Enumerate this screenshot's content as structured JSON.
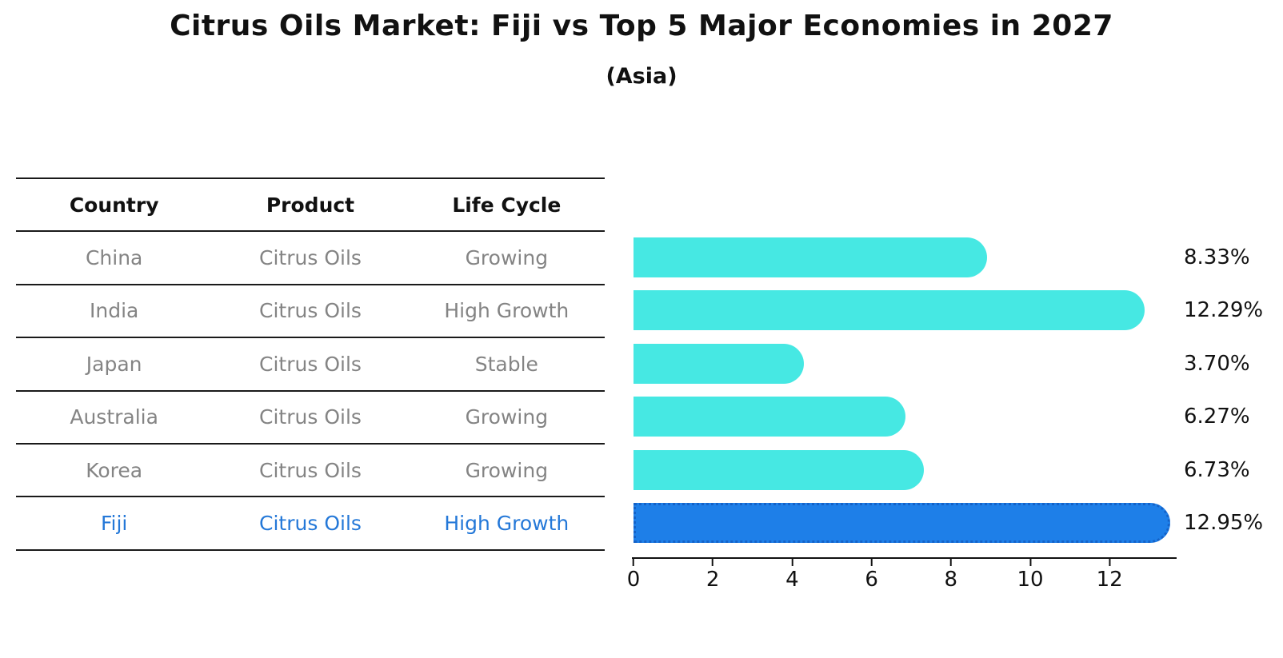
{
  "title": "Citrus Oils Market: Fiji vs Top 5 Major Economies in 2027",
  "subtitle": "(Asia)",
  "table": {
    "headers": [
      "Country",
      "Product",
      "Life Cycle"
    ],
    "rows": [
      {
        "country": "China",
        "product": "Citrus Oils",
        "life_cycle": "Growing",
        "highlight": false
      },
      {
        "country": "India",
        "product": "Citrus Oils",
        "life_cycle": "High Growth",
        "highlight": false
      },
      {
        "country": "Japan",
        "product": "Citrus Oils",
        "life_cycle": "Stable",
        "highlight": false
      },
      {
        "country": "Australia",
        "product": "Citrus Oils",
        "life_cycle": "Growing",
        "highlight": false
      },
      {
        "country": "Korea",
        "product": "Citrus Oils",
        "life_cycle": "Growing",
        "highlight": false
      },
      {
        "country": "Fiji",
        "product": "Citrus Oils",
        "life_cycle": "High Growth",
        "highlight": true
      }
    ]
  },
  "chart_data": {
    "type": "bar",
    "orientation": "horizontal",
    "title": "Citrus Oils Market: Fiji vs Top 5 Major Economies in 2027",
    "subtitle": "(Asia)",
    "categories": [
      "China",
      "India",
      "Japan",
      "Australia",
      "Korea",
      "Fiji"
    ],
    "values": [
      8.33,
      12.29,
      3.7,
      6.27,
      6.73,
      12.95
    ],
    "labels": [
      "8.33%",
      "12.29%",
      "3.70%",
      "6.27%",
      "6.73%",
      "12.95%"
    ],
    "xticks": [
      0,
      2,
      4,
      6,
      8,
      10,
      12
    ],
    "xlim": [
      0,
      13.7
    ],
    "grid": false,
    "legend": false,
    "bar_color": "#46e8e3",
    "highlight_index": 5,
    "highlight_color": "#1e7fe8",
    "highlight_border_color": "#1462c8",
    "highlight_text_color": "#2478d8"
  }
}
